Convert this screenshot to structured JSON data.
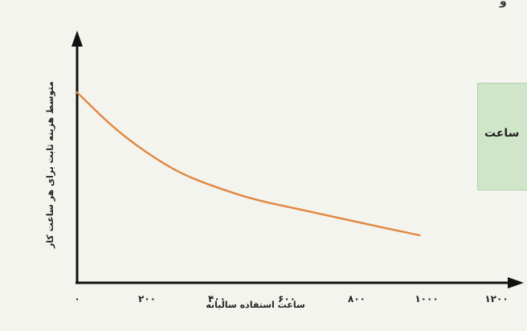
{
  "chart_data": {
    "type": "line",
    "xlabel": "ساعت استفاده سالیانه",
    "ylabel": "متوسط هزینه ثابت برای هر ساعت کار",
    "xlim": [
      0,
      1200
    ],
    "x_ticks": [
      {
        "value": 0,
        "label": "۰"
      },
      {
        "value": 200,
        "label": "۲۰۰"
      },
      {
        "value": 400,
        "label": "۴۰۰"
      },
      {
        "value": 600,
        "label": "۶۰۰"
      },
      {
        "value": 800,
        "label": "۸۰۰"
      },
      {
        "value": 1000,
        "label": "۱۰۰۰"
      },
      {
        "value": 1200,
        "label": "۱۲۰۰"
      }
    ],
    "y_axis_values_shown": false,
    "grid": false,
    "line_color": "#e08a46",
    "series": [
      {
        "x": [
          0,
          100,
          200,
          300,
          400,
          500,
          600,
          700,
          800,
          900,
          980
        ],
        "y": [
          100,
          82,
          68,
          57,
          50,
          44,
          40,
          36,
          32,
          28,
          25
        ]
      }
    ]
  },
  "callout": {
    "text": "ساعت",
    "color": "#cfe6c9"
  },
  "corner_mark": "و"
}
